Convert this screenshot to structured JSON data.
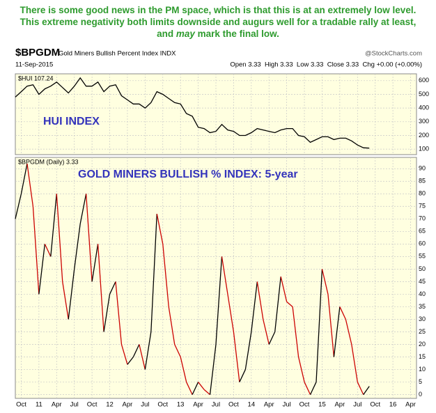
{
  "header": {
    "comment": [
      "There is some good news in the PM space, which is that this is at an extremely low level. This extreme negativity both limits downside and augurs well for a tradable rally at least, and ",
      "may",
      " mark the final low."
    ],
    "symbol": "$BPGDM",
    "name": "Gold Miners Bullish Percent Index INDX",
    "source": "@StockCharts.com",
    "date": "11-Sep-2015",
    "quote": "Open 3.33  High 3.33  Low 3.33  Close 3.33  Chg +0.00 (+0.00%)"
  },
  "chart_data": [
    {
      "type": "line",
      "legend": "$HUI 107.24",
      "annotation": "HUI INDEX",
      "color": "#000000",
      "grid": true,
      "x": [
        "2010-09",
        "2010-10",
        "2010-11",
        "2010-12",
        "2011-01",
        "2011-02",
        "2011-03",
        "2011-04",
        "2011-05",
        "2011-06",
        "2011-07",
        "2011-08",
        "2011-09",
        "2011-10",
        "2011-11",
        "2011-12",
        "2012-01",
        "2012-02",
        "2012-03",
        "2012-04",
        "2012-05",
        "2012-06",
        "2012-07",
        "2012-08",
        "2012-09",
        "2012-10",
        "2012-11",
        "2012-12",
        "2013-01",
        "2013-02",
        "2013-03",
        "2013-04",
        "2013-05",
        "2013-06",
        "2013-07",
        "2013-08",
        "2013-09",
        "2013-10",
        "2013-11",
        "2013-12",
        "2014-01",
        "2014-02",
        "2014-03",
        "2014-04",
        "2014-05",
        "2014-06",
        "2014-07",
        "2014-08",
        "2014-09",
        "2014-10",
        "2014-11",
        "2014-12",
        "2015-01",
        "2015-02",
        "2015-03",
        "2015-04",
        "2015-05",
        "2015-06",
        "2015-07",
        "2015-08",
        "2015-09"
      ],
      "values": [
        480,
        520,
        560,
        570,
        500,
        540,
        560,
        590,
        550,
        510,
        560,
        620,
        560,
        560,
        590,
        520,
        560,
        570,
        490,
        460,
        430,
        430,
        400,
        440,
        520,
        500,
        470,
        440,
        430,
        360,
        340,
        260,
        250,
        220,
        230,
        280,
        240,
        230,
        200,
        200,
        220,
        250,
        240,
        230,
        220,
        240,
        250,
        250,
        200,
        190,
        150,
        170,
        190,
        190,
        170,
        180,
        180,
        160,
        130,
        110,
        107.24
      ],
      "xlim": [
        "2010-09",
        "2016-05"
      ],
      "xticks": [
        "2010-10",
        "2011-01",
        "2011-04",
        "2011-07",
        "2011-10",
        "2012-01",
        "2012-04",
        "2012-07",
        "2012-10",
        "2013-01",
        "2013-04",
        "2013-07",
        "2013-10",
        "2014-01",
        "2014-04",
        "2014-07",
        "2014-10",
        "2015-01",
        "2015-04",
        "2015-07",
        "2015-10",
        "2016-01",
        "2016-04"
      ],
      "ylim": [
        60,
        650
      ],
      "yticks": [
        100,
        200,
        300,
        400,
        500,
        600
      ]
    },
    {
      "type": "updown-line",
      "legend": "$BPGDM (Daily) 3.33",
      "annotation": "GOLD MINERS BULLISH % INDEX: 5-year",
      "up_color": "#000000",
      "down_color": "#cc0000",
      "grid": true,
      "x": [
        "2010-09",
        "2010-10",
        "2010-11",
        "2010-12",
        "2011-01",
        "2011-02",
        "2011-03",
        "2011-04",
        "2011-05",
        "2011-06",
        "2011-07",
        "2011-08",
        "2011-09",
        "2011-10",
        "2011-11",
        "2011-12",
        "2012-01",
        "2012-02",
        "2012-03",
        "2012-04",
        "2012-05",
        "2012-06",
        "2012-07",
        "2012-08",
        "2012-09",
        "2012-10",
        "2012-11",
        "2012-12",
        "2013-01",
        "2013-02",
        "2013-03",
        "2013-04",
        "2013-05",
        "2013-06",
        "2013-07",
        "2013-08",
        "2013-09",
        "2013-10",
        "2013-11",
        "2013-12",
        "2014-01",
        "2014-02",
        "2014-03",
        "2014-04",
        "2014-05",
        "2014-06",
        "2014-07",
        "2014-08",
        "2014-09",
        "2014-10",
        "2014-11",
        "2014-12",
        "2015-01",
        "2015-02",
        "2015-03",
        "2015-04",
        "2015-05",
        "2015-06",
        "2015-07",
        "2015-08",
        "2015-09"
      ],
      "values": [
        70,
        80,
        92,
        75,
        40,
        60,
        55,
        80,
        45,
        30,
        50,
        68,
        80,
        45,
        60,
        25,
        40,
        45,
        20,
        12,
        15,
        20,
        10,
        25,
        72,
        60,
        35,
        20,
        15,
        5,
        0,
        5,
        2,
        0,
        20,
        55,
        40,
        25,
        5,
        10,
        25,
        45,
        30,
        20,
        25,
        47,
        37,
        35,
        15,
        5,
        0,
        5,
        50,
        40,
        15,
        35,
        30,
        20,
        5,
        0,
        3.33
      ],
      "xlim": [
        "2010-09",
        "2016-05"
      ],
      "xticks": [
        {
          "value": "2010-10",
          "label": "Oct"
        },
        {
          "value": "2011-01",
          "label": "11"
        },
        {
          "value": "2011-04",
          "label": "Apr"
        },
        {
          "value": "2011-07",
          "label": "Jul"
        },
        {
          "value": "2011-10",
          "label": "Oct"
        },
        {
          "value": "2012-01",
          "label": "12"
        },
        {
          "value": "2012-04",
          "label": "Apr"
        },
        {
          "value": "2012-07",
          "label": "Jul"
        },
        {
          "value": "2012-10",
          "label": "Oct"
        },
        {
          "value": "2013-01",
          "label": "13"
        },
        {
          "value": "2013-04",
          "label": "Apr"
        },
        {
          "value": "2013-07",
          "label": "Jul"
        },
        {
          "value": "2013-10",
          "label": "Oct"
        },
        {
          "value": "2014-01",
          "label": "14"
        },
        {
          "value": "2014-04",
          "label": "Apr"
        },
        {
          "value": "2014-07",
          "label": "Jul"
        },
        {
          "value": "2014-10",
          "label": "Oct"
        },
        {
          "value": "2015-01",
          "label": "15"
        },
        {
          "value": "2015-04",
          "label": "Apr"
        },
        {
          "value": "2015-07",
          "label": "Jul"
        },
        {
          "value": "2015-10",
          "label": "Oct"
        },
        {
          "value": "2016-01",
          "label": "16"
        },
        {
          "value": "2016-04",
          "label": "Apr"
        }
      ],
      "ylim": [
        -1.5,
        94.5
      ],
      "yticks": [
        0,
        5,
        10,
        15,
        20,
        25,
        30,
        35,
        40,
        45,
        50,
        55,
        60,
        65,
        70,
        75,
        80,
        85,
        90
      ]
    }
  ]
}
